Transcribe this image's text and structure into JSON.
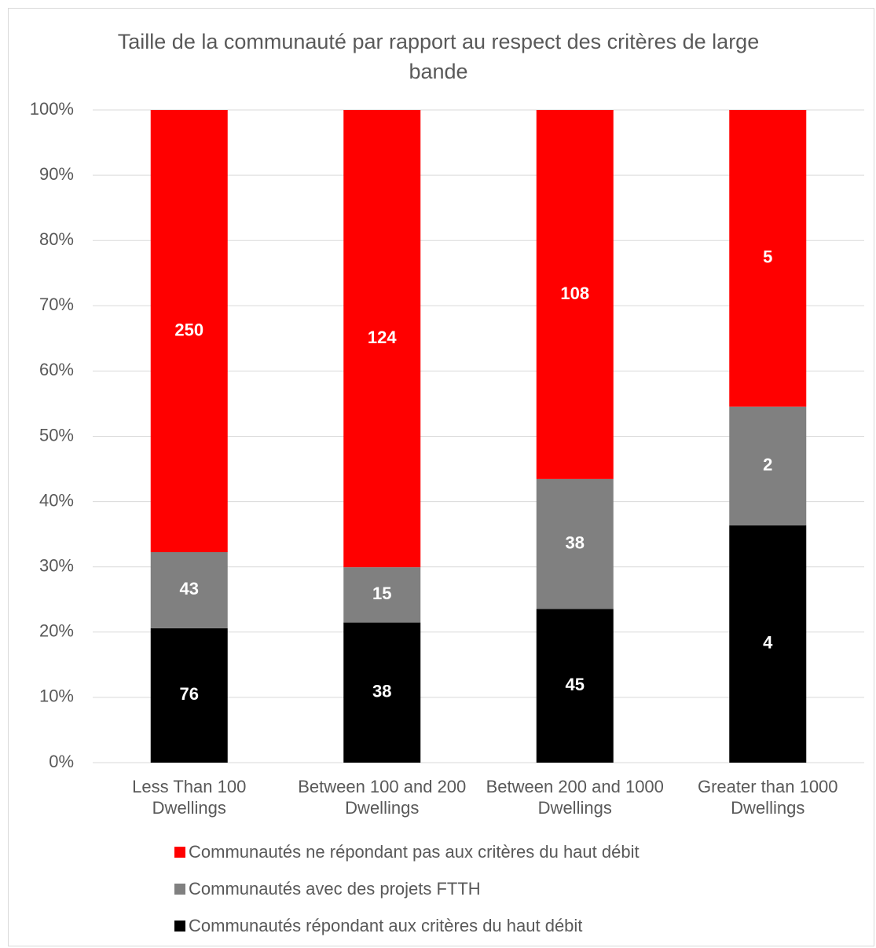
{
  "chart_data": {
    "type": "bar",
    "stacking": "percent",
    "title": "Taille de la communauté par rapport au respect des critères de large bande",
    "categories": [
      "Less Than 100 Dwellings",
      "Between 100 and 200 Dwellings",
      "Between 200 and 1000 Dwellings",
      "Greater than 1000 Dwellings"
    ],
    "series": [
      {
        "name": "Communautés répondant aux critères du haut débit",
        "color": "#000000",
        "values": [
          76,
          38,
          45,
          4
        ]
      },
      {
        "name": "Communautés avec des projets FTTH",
        "color": "#808080",
        "values": [
          43,
          15,
          38,
          2
        ]
      },
      {
        "name": "Communautés ne répondant pas aux critères du haut débit",
        "color": "#ff0000",
        "values": [
          250,
          124,
          108,
          5
        ]
      }
    ],
    "ylim": [
      0,
      100
    ],
    "yticks": [
      {
        "value": 0,
        "label": "0%"
      },
      {
        "value": 10,
        "label": "10%"
      },
      {
        "value": 20,
        "label": "20%"
      },
      {
        "value": 30,
        "label": "30%"
      },
      {
        "value": 40,
        "label": "40%"
      },
      {
        "value": 50,
        "label": "50%"
      },
      {
        "value": 60,
        "label": "60%"
      },
      {
        "value": 70,
        "label": "70%"
      },
      {
        "value": 80,
        "label": "80%"
      },
      {
        "value": 90,
        "label": "90%"
      },
      {
        "value": 100,
        "label": "100%"
      }
    ],
    "grid": true,
    "legend": "bottom"
  }
}
